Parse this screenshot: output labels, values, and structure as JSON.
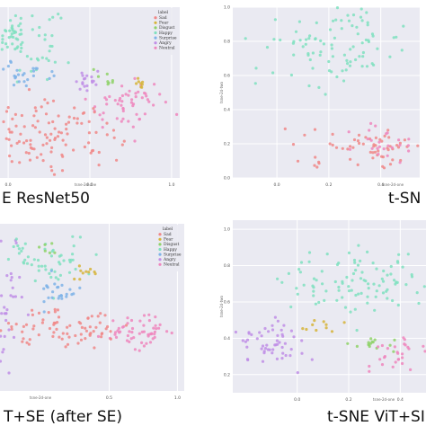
{
  "chart_data": [
    {
      "type": "scatter",
      "caption": "E ResNet50",
      "xlabel": "tsne-2d-one",
      "ylabel": "",
      "x_ticks": [
        "0.0",
        "0.5",
        "1.0"
      ],
      "y_ticks": [],
      "xlim": [
        -0.05,
        1.05
      ],
      "ylim": [
        0.0,
        1.0
      ],
      "grid": true,
      "legend": {
        "title": "label",
        "position": "top-right",
        "entries": [
          "Sad",
          "Fear",
          "Disgust",
          "Happy",
          "Surprise",
          "Angry",
          "Neutral"
        ]
      },
      "clusters": [
        {
          "label": "Happy",
          "cx": 0.05,
          "cy": 0.82,
          "sx": 0.13,
          "sy": 0.09,
          "n": 85
        },
        {
          "label": "Neutral",
          "cx": 0.72,
          "cy": 0.43,
          "sx": 0.12,
          "sy": 0.07,
          "n": 55
        },
        {
          "label": "Sad",
          "cx": 0.25,
          "cy": 0.25,
          "sx": 0.22,
          "sy": 0.09,
          "n": 110
        },
        {
          "label": "Angry",
          "cx": 0.48,
          "cy": 0.56,
          "sx": 0.04,
          "sy": 0.03,
          "n": 18
        },
        {
          "label": "Surprise",
          "cx": 0.12,
          "cy": 0.62,
          "sx": 0.07,
          "sy": 0.05,
          "n": 25
        },
        {
          "label": "Fear",
          "cx": 0.83,
          "cy": 0.55,
          "sx": 0.03,
          "sy": 0.02,
          "n": 8
        },
        {
          "label": "Disgust",
          "cx": 0.6,
          "cy": 0.58,
          "sx": 0.04,
          "sy": 0.02,
          "n": 8
        }
      ]
    },
    {
      "type": "scatter",
      "caption": "t-SN",
      "xlabel": "tsne-2d-one",
      "ylabel": "tsne-2d-two",
      "x_ticks": [
        "0.0",
        "0.2",
        "0.4"
      ],
      "y_ticks": [
        "0.0",
        "0.2",
        "0.4",
        "0.6",
        "0.8",
        "1.0"
      ],
      "xlim": [
        -0.17,
        0.55
      ],
      "ylim": [
        0.0,
        1.0
      ],
      "grid": true,
      "legend": null,
      "clusters": [
        {
          "label": "Happy",
          "cx": 0.22,
          "cy": 0.78,
          "sx": 0.14,
          "sy": 0.12,
          "n": 95
        },
        {
          "label": "Sad",
          "cx": 0.35,
          "cy": 0.18,
          "sx": 0.12,
          "sy": 0.06,
          "n": 60
        },
        {
          "label": "Neutral",
          "cx": 0.42,
          "cy": 0.22,
          "sx": 0.08,
          "sy": 0.05,
          "n": 25
        }
      ]
    },
    {
      "type": "scatter",
      "caption": "T+SE (after SE)",
      "xlabel": "tsne-2d-one",
      "ylabel": "",
      "x_ticks": [
        "0.5",
        "1.0"
      ],
      "y_ticks": [],
      "xlim": [
        -0.3,
        1.05
      ],
      "ylim": [
        0.0,
        1.0
      ],
      "grid": true,
      "legend": {
        "title": "label",
        "position": "top-right",
        "entries": [
          "Sad",
          "Fear",
          "Disgust",
          "Happy",
          "Surprise",
          "Angry",
          "Neutral"
        ]
      },
      "clusters": [
        {
          "label": "Angry",
          "cx": -0.25,
          "cy": 0.55,
          "sx": 0.07,
          "sy": 0.18,
          "n": 40
        },
        {
          "label": "Happy",
          "cx": 0.05,
          "cy": 0.78,
          "sx": 0.16,
          "sy": 0.07,
          "n": 55
        },
        {
          "label": "Neutral",
          "cx": 0.72,
          "cy": 0.35,
          "sx": 0.14,
          "sy": 0.05,
          "n": 55
        },
        {
          "label": "Sad",
          "cx": 0.2,
          "cy": 0.38,
          "sx": 0.22,
          "sy": 0.06,
          "n": 75
        },
        {
          "label": "Surprise",
          "cx": 0.12,
          "cy": 0.58,
          "sx": 0.08,
          "sy": 0.04,
          "n": 25
        },
        {
          "label": "Disgust",
          "cx": 0.06,
          "cy": 0.85,
          "sx": 0.03,
          "sy": 0.02,
          "n": 6
        },
        {
          "label": "Fear",
          "cx": 0.35,
          "cy": 0.7,
          "sx": 0.05,
          "sy": 0.03,
          "n": 10
        }
      ]
    },
    {
      "type": "scatter",
      "caption": "t-SNE ViT+SI",
      "xlabel": "tsne-2d-one",
      "ylabel": "tsne-2d-two",
      "x_ticks": [
        "0.0",
        "0.2",
        "0.4"
      ],
      "y_ticks": [
        "0.2",
        "0.4",
        "0.6",
        "0.8",
        "1.0"
      ],
      "xlim": [
        -0.25,
        0.5
      ],
      "ylim": [
        0.1,
        1.05
      ],
      "grid": true,
      "legend": null,
      "clusters": [
        {
          "label": "Happy",
          "cx": 0.25,
          "cy": 0.7,
          "sx": 0.15,
          "sy": 0.1,
          "n": 100
        },
        {
          "label": "Angry",
          "cx": -0.1,
          "cy": 0.38,
          "sx": 0.07,
          "sy": 0.07,
          "n": 55
        },
        {
          "label": "Disgust",
          "cx": 0.29,
          "cy": 0.37,
          "sx": 0.04,
          "sy": 0.02,
          "n": 15
        },
        {
          "label": "Neutral",
          "cx": 0.4,
          "cy": 0.32,
          "sx": 0.07,
          "sy": 0.05,
          "n": 30
        },
        {
          "label": "Fear",
          "cx": 0.08,
          "cy": 0.48,
          "sx": 0.05,
          "sy": 0.03,
          "n": 10
        }
      ]
    }
  ],
  "colors": {
    "plot_bg": "#eaeaf2",
    "grid": "#ffffff",
    "Sad": "#f08787",
    "Fear": "#d6b43a",
    "Disgust": "#8fd26a",
    "Happy": "#7fe0bf",
    "Surprise": "#7fb3e8",
    "Angry": "#c08ee6",
    "Neutral": "#ef86bd"
  }
}
